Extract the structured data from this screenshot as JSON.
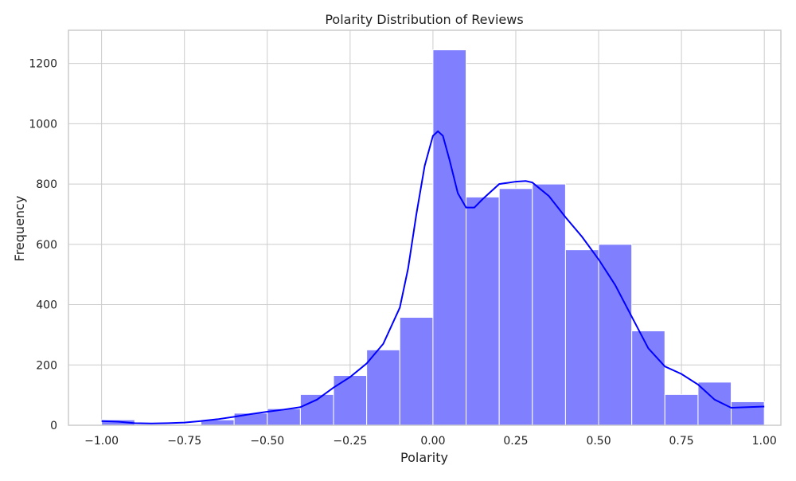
{
  "chart_data": {
    "type": "bar",
    "title": "Polarity Distribution of Reviews",
    "xlabel": "Polarity",
    "ylabel": "Frequency",
    "xlim": [
      -1.1,
      1.05
    ],
    "ylim": [
      0,
      1310
    ],
    "grid": true,
    "bin_edges": [
      -1.0,
      -0.9,
      -0.8,
      -0.7,
      -0.6,
      -0.5,
      -0.4,
      -0.3,
      -0.2,
      -0.1,
      0.0,
      0.1,
      0.2,
      0.3,
      0.4,
      0.5,
      0.6,
      0.7,
      0.8,
      0.9,
      1.0
    ],
    "values": [
      18,
      3,
      3,
      18,
      40,
      55,
      102,
      165,
      250,
      358,
      1245,
      757,
      785,
      800,
      582,
      600,
      313,
      102,
      143,
      78
    ],
    "kde": {
      "x": [
        -1.0,
        -0.95,
        -0.9,
        -0.85,
        -0.8,
        -0.75,
        -0.7,
        -0.65,
        -0.6,
        -0.55,
        -0.5,
        -0.45,
        -0.4,
        -0.35,
        -0.3,
        -0.25,
        -0.2,
        -0.15,
        -0.1,
        -0.075,
        -0.05,
        -0.025,
        0.0,
        0.015,
        0.03,
        0.05,
        0.075,
        0.1,
        0.125,
        0.15,
        0.2,
        0.25,
        0.28,
        0.3,
        0.35,
        0.4,
        0.45,
        0.5,
        0.55,
        0.6,
        0.65,
        0.7,
        0.75,
        0.8,
        0.85,
        0.9,
        0.95,
        1.0
      ],
      "y": [
        14,
        12,
        7,
        6,
        7,
        9,
        14,
        20,
        28,
        37,
        45,
        52,
        60,
        85,
        125,
        160,
        205,
        270,
        390,
        520,
        700,
        860,
        960,
        975,
        960,
        880,
        770,
        722,
        722,
        750,
        800,
        808,
        810,
        805,
        760,
        690,
        625,
        550,
        465,
        360,
        255,
        195,
        170,
        135,
        85,
        58,
        60,
        62
      ]
    },
    "x_ticks": [
      -1.0,
      -0.75,
      -0.5,
      -0.25,
      0.0,
      0.25,
      0.5,
      0.75,
      1.0
    ],
    "x_tick_labels": [
      "−1.00",
      "−0.75",
      "−0.50",
      "−0.25",
      "0.00",
      "0.25",
      "0.50",
      "0.75",
      "1.00"
    ],
    "y_ticks": [
      0,
      200,
      400,
      600,
      800,
      1000,
      1200
    ],
    "y_tick_labels": [
      "0",
      "200",
      "400",
      "600",
      "800",
      "1000",
      "1200"
    ],
    "colors": {
      "bar_fill": "#8080ff",
      "bar_edge": "#ffffff",
      "kde_line": "#0000ff",
      "grid": "#cccccc",
      "axes_edge": "#cccccc"
    }
  }
}
